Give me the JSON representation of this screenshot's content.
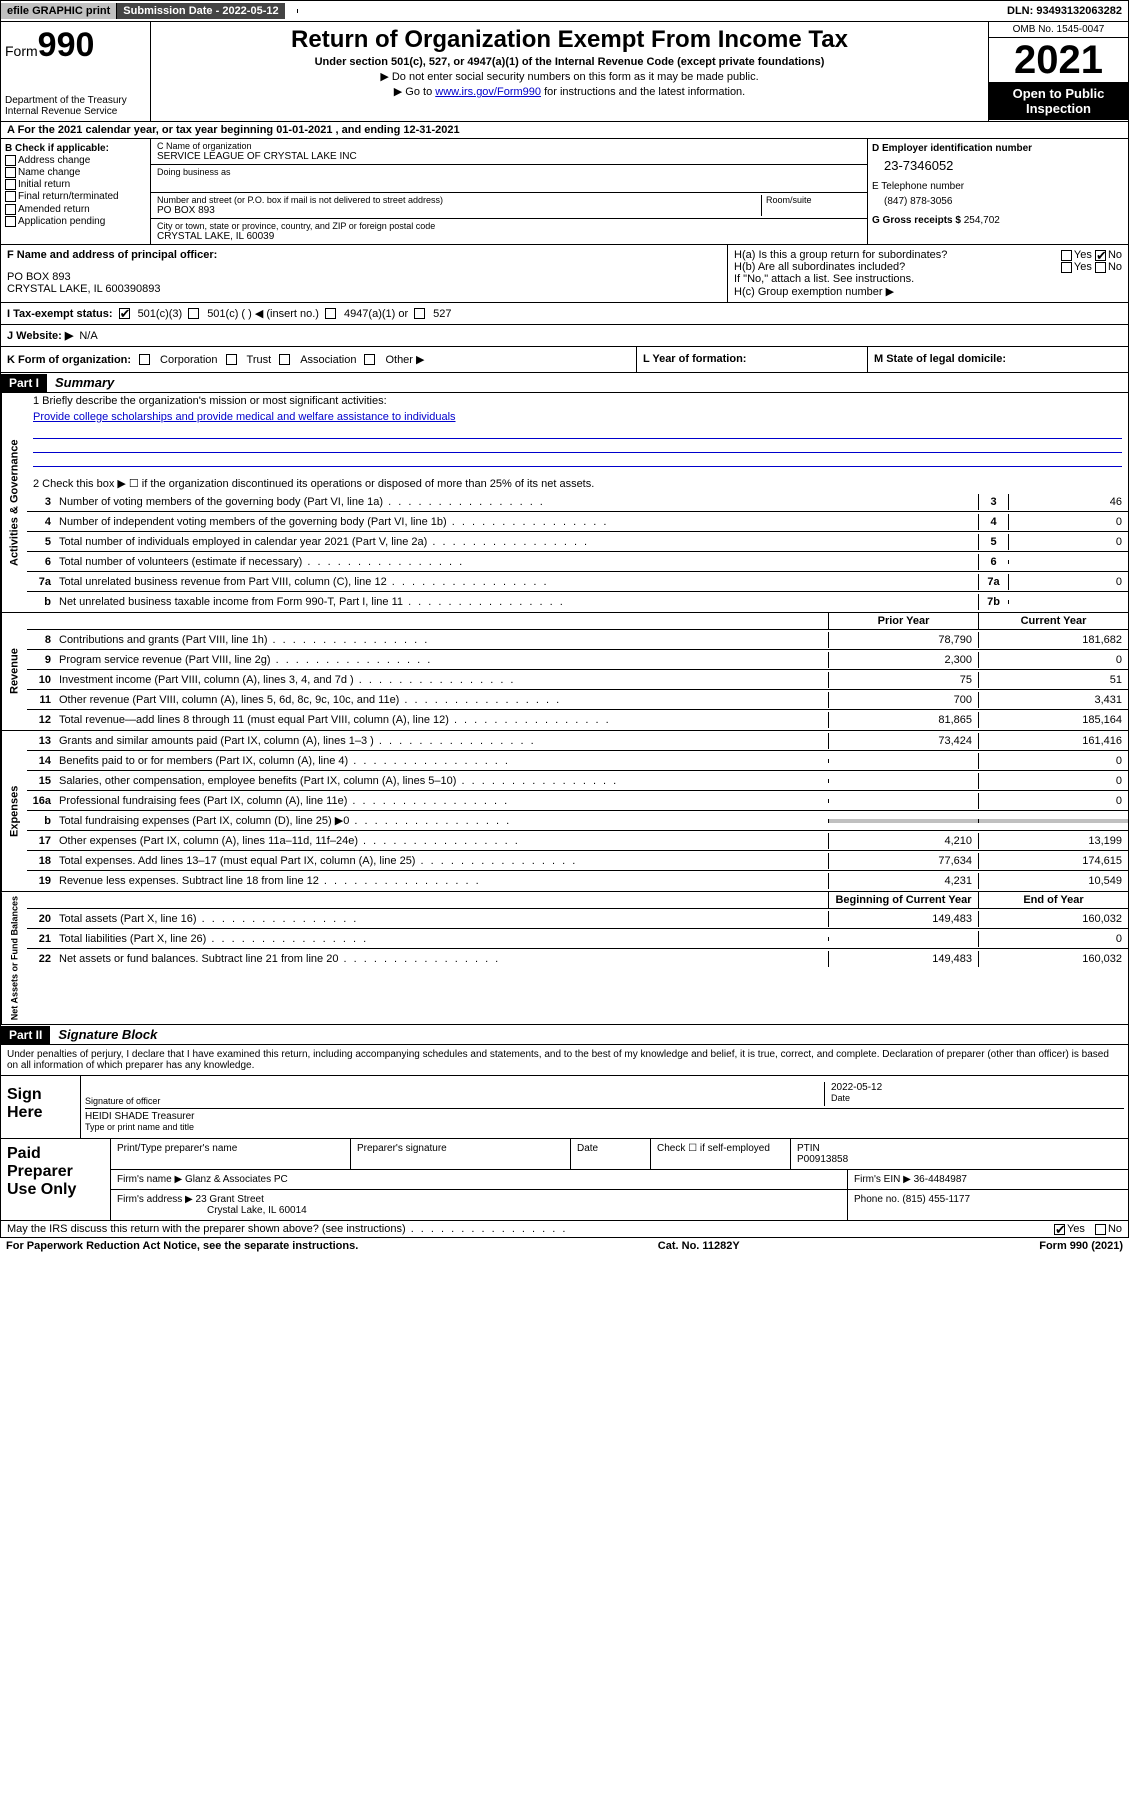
{
  "top": {
    "efile": "efile GRAPHIC print",
    "sub_date_label": "Submission Date - ",
    "sub_date": "2022-05-12",
    "dln_label": "DLN: ",
    "dln": "93493132063282"
  },
  "header": {
    "form_label": "Form",
    "form_num": "990",
    "dept": "Department of the Treasury",
    "irs": "Internal Revenue Service",
    "title": "Return of Organization Exempt From Income Tax",
    "subtitle": "Under section 501(c), 527, or 4947(a)(1) of the Internal Revenue Code (except private foundations)",
    "note1": "▶ Do not enter social security numbers on this form as it may be made public.",
    "note2_pre": "▶ Go to ",
    "note2_link": "www.irs.gov/Form990",
    "note2_post": " for instructions and the latest information.",
    "omb": "OMB No. 1545-0047",
    "year": "2021",
    "open": "Open to Public Inspection"
  },
  "rowA": "A For the 2021 calendar year, or tax year beginning 01-01-2021    , and ending 12-31-2021",
  "B": {
    "label": "B Check if applicable:",
    "opts": [
      "Address change",
      "Name change",
      "Initial return",
      "Final return/terminated",
      "Amended return",
      "Application pending"
    ]
  },
  "C": {
    "name_label": "C Name of organization",
    "name": "SERVICE LEAGUE OF CRYSTAL LAKE INC",
    "dba_label": "Doing business as",
    "addr_label": "Number and street (or P.O. box if mail is not delivered to street address)",
    "room_label": "Room/suite",
    "addr": "PO BOX 893",
    "city_label": "City or town, state or province, country, and ZIP or foreign postal code",
    "city": "CRYSTAL LAKE, IL  60039"
  },
  "D": {
    "label": "D Employer identification number",
    "ein": "23-7346052",
    "tel_label": "E Telephone number",
    "tel": "(847) 878-3056",
    "gross_label": "G Gross receipts $ ",
    "gross": "254,702"
  },
  "F": {
    "label": "F Name and address of principal officer:",
    "addr1": "PO BOX 893",
    "addr2": "CRYSTAL LAKE, IL  600390893"
  },
  "H": {
    "a": "H(a)  Is this a group return for subordinates?",
    "a_yes": "Yes",
    "a_no": "No",
    "b": "H(b)  Are all subordinates included?",
    "b_yes": "Yes",
    "b_no": "No",
    "b_note": "If \"No,\" attach a list. See instructions.",
    "c": "H(c)  Group exemption number ▶"
  },
  "I": {
    "label": "I   Tax-exempt status:",
    "opt1": "501(c)(3)",
    "opt2": "501(c) (   ) ◀ (insert no.)",
    "opt3": "4947(a)(1) or",
    "opt4": "527"
  },
  "J": {
    "label": "J   Website: ▶",
    "val": "N/A"
  },
  "K": {
    "label": "K Form of organization:",
    "opts": [
      "Corporation",
      "Trust",
      "Association",
      "Other ▶"
    ]
  },
  "L": "L Year of formation:",
  "M": "M State of legal domicile:",
  "part1": {
    "hdr": "Part I",
    "title": "Summary"
  },
  "vtabs": {
    "gov": "Activities & Governance",
    "rev": "Revenue",
    "exp": "Expenses",
    "net": "Net Assets or Fund Balances"
  },
  "q1": {
    "label": "1   Briefly describe the organization's mission or most significant activities:",
    "text": "Provide college scholarships and provide medical and welfare assistance to individuals"
  },
  "q2": "2   Check this box ▶ ☐  if the organization discontinued its operations or disposed of more than 25% of its net assets.",
  "lines_gov": [
    {
      "n": "3",
      "d": "Number of voting members of the governing body (Part VI, line 1a)",
      "box": "3",
      "v": "46"
    },
    {
      "n": "4",
      "d": "Number of independent voting members of the governing body (Part VI, line 1b)",
      "box": "4",
      "v": "0"
    },
    {
      "n": "5",
      "d": "Total number of individuals employed in calendar year 2021 (Part V, line 2a)",
      "box": "5",
      "v": "0"
    },
    {
      "n": "6",
      "d": "Total number of volunteers (estimate if necessary)",
      "box": "6",
      "v": ""
    },
    {
      "n": "7a",
      "d": "Total unrelated business revenue from Part VIII, column (C), line 12",
      "box": "7a",
      "v": "0"
    },
    {
      "n": "b",
      "d": "Net unrelated business taxable income from Form 990-T, Part I, line 11",
      "box": "7b",
      "v": ""
    }
  ],
  "col_hdr": {
    "prior": "Prior Year",
    "current": "Current Year"
  },
  "lines_rev": [
    {
      "n": "8",
      "d": "Contributions and grants (Part VIII, line 1h)",
      "p": "78,790",
      "c": "181,682"
    },
    {
      "n": "9",
      "d": "Program service revenue (Part VIII, line 2g)",
      "p": "2,300",
      "c": "0"
    },
    {
      "n": "10",
      "d": "Investment income (Part VIII, column (A), lines 3, 4, and 7d )",
      "p": "75",
      "c": "51"
    },
    {
      "n": "11",
      "d": "Other revenue (Part VIII, column (A), lines 5, 6d, 8c, 9c, 10c, and 11e)",
      "p": "700",
      "c": "3,431"
    },
    {
      "n": "12",
      "d": "Total revenue—add lines 8 through 11 (must equal Part VIII, column (A), line 12)",
      "p": "81,865",
      "c": "185,164"
    }
  ],
  "lines_exp": [
    {
      "n": "13",
      "d": "Grants and similar amounts paid (Part IX, column (A), lines 1–3 )",
      "p": "73,424",
      "c": "161,416"
    },
    {
      "n": "14",
      "d": "Benefits paid to or for members (Part IX, column (A), line 4)",
      "p": "",
      "c": "0"
    },
    {
      "n": "15",
      "d": "Salaries, other compensation, employee benefits (Part IX, column (A), lines 5–10)",
      "p": "",
      "c": "0"
    },
    {
      "n": "16a",
      "d": "Professional fundraising fees (Part IX, column (A), line 11e)",
      "p": "",
      "c": "0"
    },
    {
      "n": "b",
      "d": "Total fundraising expenses (Part IX, column (D), line 25) ▶0",
      "p": "GREY",
      "c": "GREY"
    },
    {
      "n": "17",
      "d": "Other expenses (Part IX, column (A), lines 11a–11d, 11f–24e)",
      "p": "4,210",
      "c": "13,199"
    },
    {
      "n": "18",
      "d": "Total expenses. Add lines 13–17 (must equal Part IX, column (A), line 25)",
      "p": "77,634",
      "c": "174,615"
    },
    {
      "n": "19",
      "d": "Revenue less expenses. Subtract line 18 from line 12",
      "p": "4,231",
      "c": "10,549"
    }
  ],
  "col_hdr2": {
    "begin": "Beginning of Current Year",
    "end": "End of Year"
  },
  "lines_net": [
    {
      "n": "20",
      "d": "Total assets (Part X, line 16)",
      "p": "149,483",
      "c": "160,032"
    },
    {
      "n": "21",
      "d": "Total liabilities (Part X, line 26)",
      "p": "",
      "c": "0"
    },
    {
      "n": "22",
      "d": "Net assets or fund balances. Subtract line 21 from line 20",
      "p": "149,483",
      "c": "160,032"
    }
  ],
  "part2": {
    "hdr": "Part II",
    "title": "Signature Block"
  },
  "sig_decl": "Under penalties of perjury, I declare that I have examined this return, including accompanying schedules and statements, and to the best of my knowledge and belief, it is true, correct, and complete. Declaration of preparer (other than officer) is based on all information of which preparer has any knowledge.",
  "sign": {
    "here": "Sign Here",
    "sig_label": "Signature of officer",
    "date": "2022-05-12",
    "date_label": "Date",
    "name": "HEIDI SHADE Treasurer",
    "name_label": "Type or print name and title"
  },
  "paid": {
    "label": "Paid Preparer Use Only",
    "h1": "Print/Type preparer's name",
    "h2": "Preparer's signature",
    "h3": "Date",
    "h4_pre": "Check ☐ if self-employed",
    "h5": "PTIN",
    "ptin": "P00913858",
    "firm_name_label": "Firm's name    ▶",
    "firm_name": "Glanz & Associates PC",
    "firm_ein_label": "Firm's EIN ▶",
    "firm_ein": "36-4484987",
    "firm_addr_label": "Firm's address ▶",
    "firm_addr1": "23 Grant Street",
    "firm_addr2": "Crystal Lake, IL  60014",
    "phone_label": "Phone no.",
    "phone": "(815) 455-1177"
  },
  "may_irs": {
    "q": "May the IRS discuss this return with the preparer shown above? (see instructions)",
    "yes": "Yes",
    "no": "No"
  },
  "footer": {
    "left": "For Paperwork Reduction Act Notice, see the separate instructions.",
    "mid": "Cat. No. 11282Y",
    "right": "Form 990 (2021)"
  }
}
